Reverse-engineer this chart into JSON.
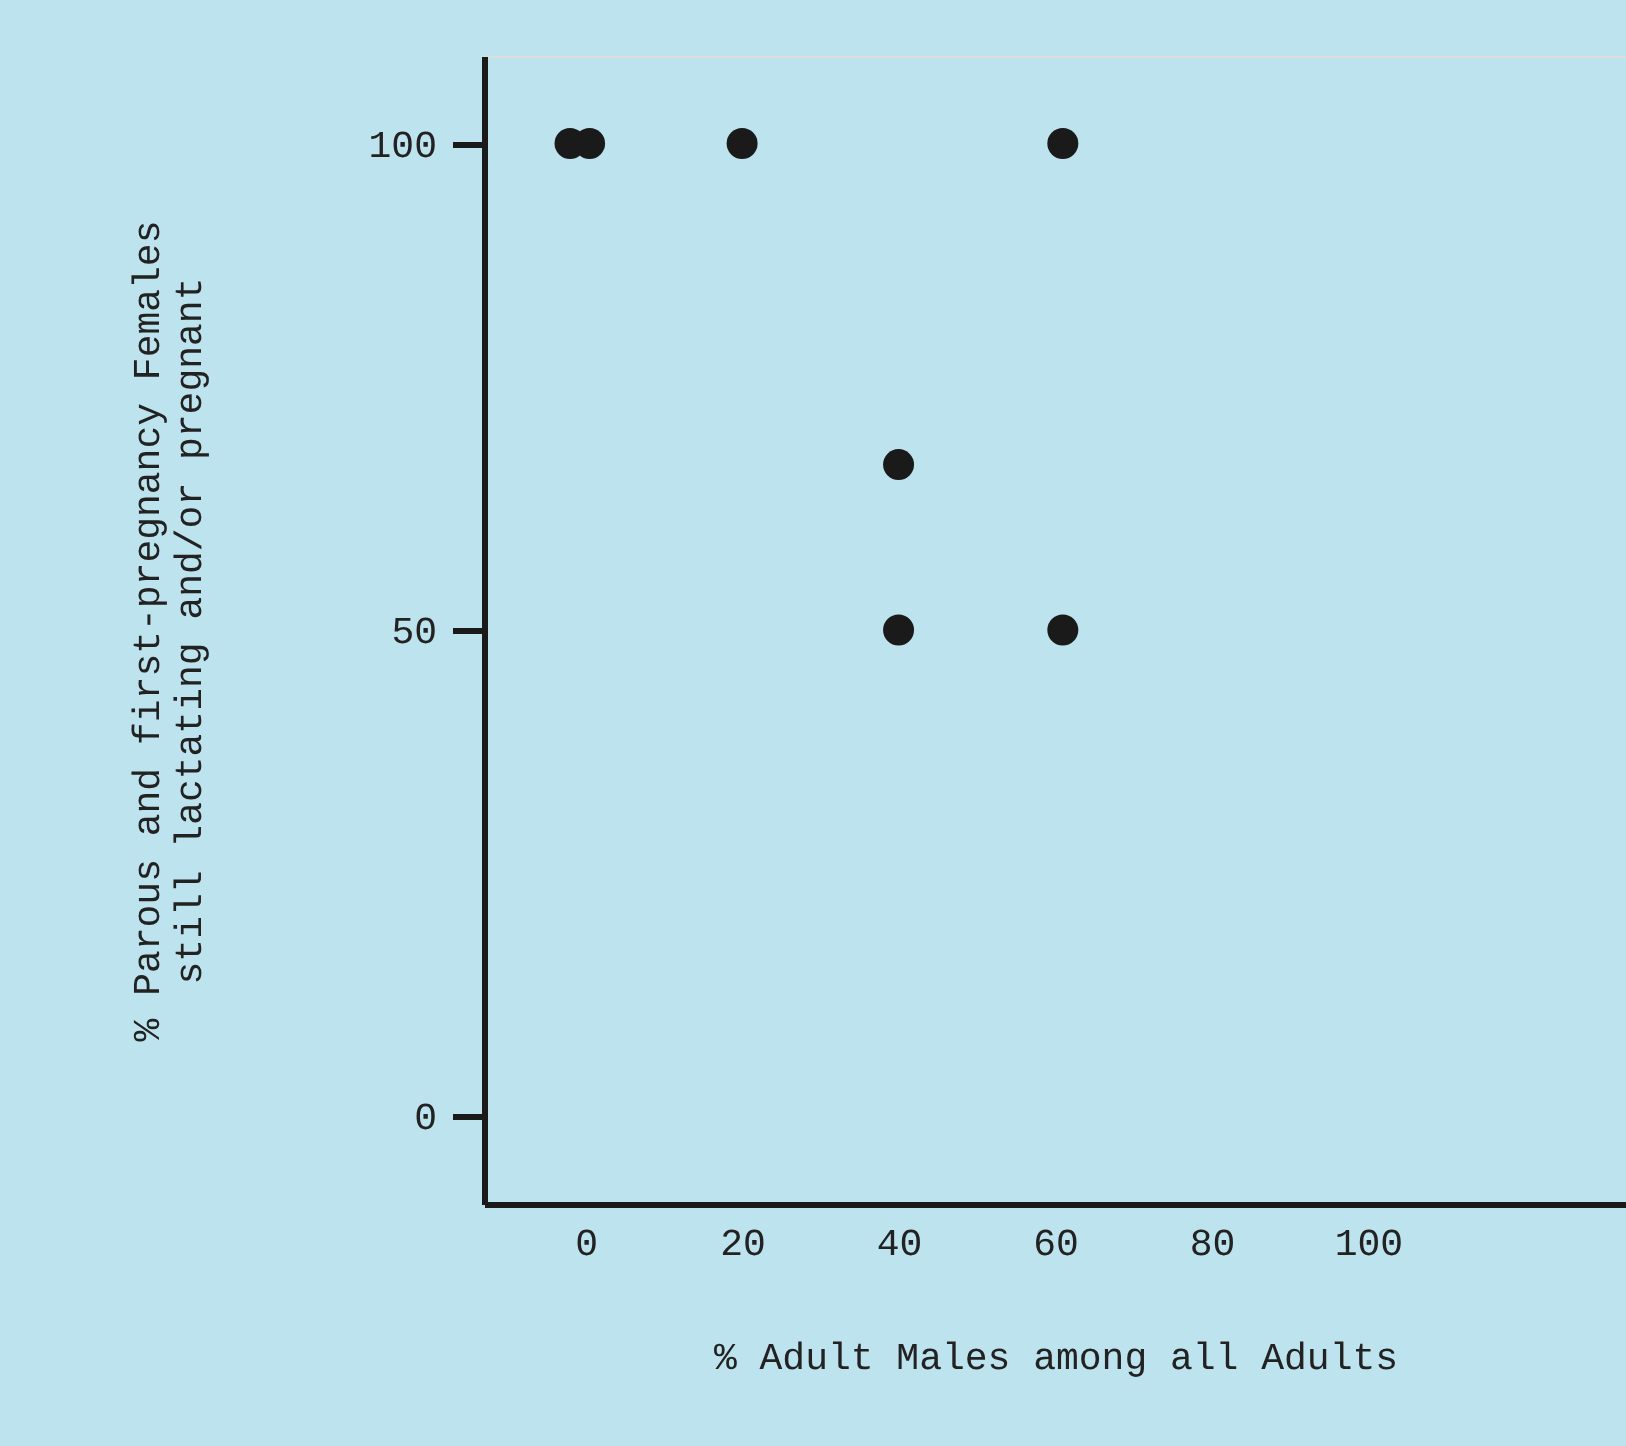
{
  "chart_data": {
    "type": "scatter",
    "xlabel": "% Adult Males among all Adults",
    "ylabel": "% Parous and first-pregnancy Females\nstill lactating and/or pregnant",
    "x": [
      -2,
      0.5,
      20,
      61,
      40,
      40,
      61
    ],
    "values": [
      100,
      100,
      100,
      100,
      67,
      50,
      50
    ],
    "color": "#1a1a1a",
    "marker": "circle",
    "xlim": [
      -13,
      133
    ],
    "xticks": [
      0,
      20,
      40,
      60,
      80,
      100
    ],
    "ylim": [
      -9,
      109
    ],
    "yticks": [
      0,
      50,
      100
    ],
    "grid": false
  }
}
